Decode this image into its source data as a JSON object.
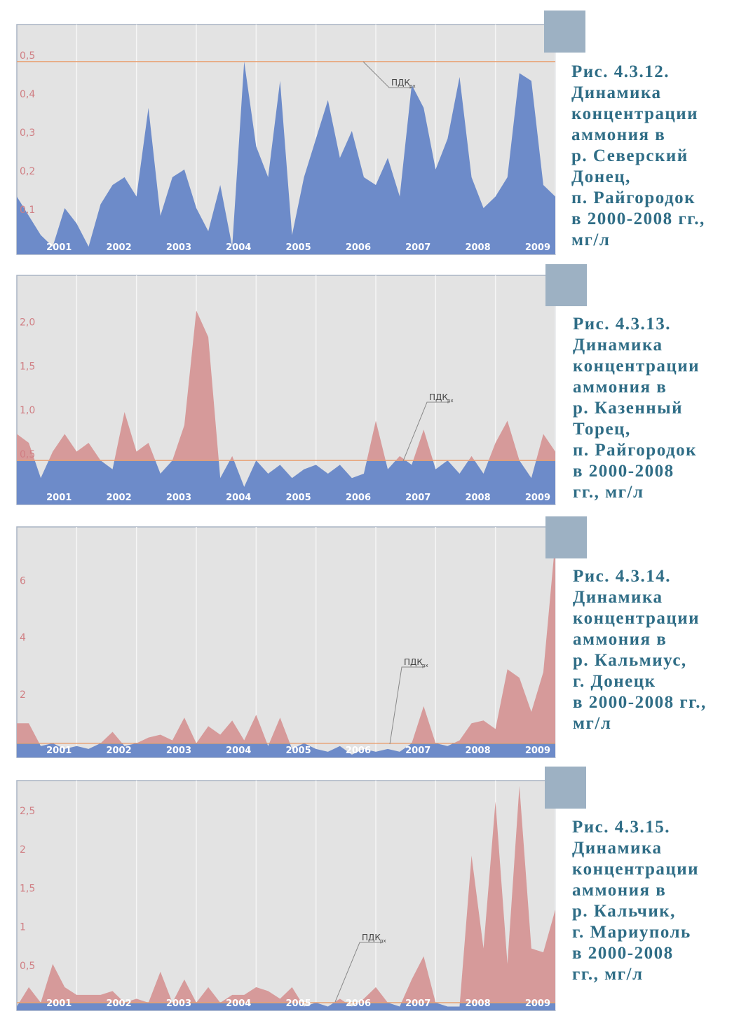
{
  "chart_data": [
    {
      "type": "area",
      "caption": [
        "Рис. 4.3.12.",
        "Динамика",
        "концентрации",
        "аммония в",
        "р. Северский",
        "Донец,",
        "п. Райгородок",
        "в 2000-2008 гг.,",
        "мг/л"
      ],
      "annotation": {
        "text": "ПДК",
        "sub": "рх"
      },
      "threshold": 0.5,
      "xlim": [
        2000,
        2009
      ],
      "xticks": [
        2001,
        2002,
        2003,
        2004,
        2005,
        2006,
        2007,
        2008,
        2009
      ],
      "ylim": [
        0,
        0.596
      ],
      "yticks": [
        {
          "value": 0.1,
          "label": "0,1"
        },
        {
          "value": 0.2,
          "label": "0,2"
        },
        {
          "value": 0.3,
          "label": "0,3"
        },
        {
          "value": 0.4,
          "label": "0,4"
        },
        {
          "value": 0.5,
          "label": "0,5"
        }
      ],
      "color_below": "#6d8bc9",
      "color_above": "#d69a9a",
      "x": [
        2000,
        2000.2,
        2000.4,
        2000.6,
        2000.8,
        2001,
        2001.2,
        2001.4,
        2001.6,
        2001.8,
        2002,
        2002.2,
        2002.4,
        2002.6,
        2002.8,
        2003,
        2003.2,
        2003.4,
        2003.6,
        2003.8,
        2004,
        2004.2,
        2004.4,
        2004.6,
        2004.8,
        2005,
        2005.2,
        2005.4,
        2005.6,
        2005.8,
        2006,
        2006.2,
        2006.4,
        2006.6,
        2006.8,
        2007,
        2007.2,
        2007.4,
        2007.6,
        2007.8,
        2008,
        2008.2,
        2008.4,
        2008.6,
        2008.8,
        2009
      ],
      "values": [
        0.15,
        0.1,
        0.05,
        0.02,
        0.12,
        0.08,
        0.02,
        0.13,
        0.18,
        0.2,
        0.15,
        0.38,
        0.1,
        0.2,
        0.22,
        0.12,
        0.06,
        0.18,
        0.02,
        0.5,
        0.28,
        0.2,
        0.45,
        0.05,
        0.2,
        0.3,
        0.4,
        0.25,
        0.32,
        0.2,
        0.18,
        0.25,
        0.15,
        0.44,
        0.38,
        0.22,
        0.3,
        0.46,
        0.2,
        0.12,
        0.15,
        0.2,
        0.47,
        0.45,
        0.18,
        0.15
      ]
    },
    {
      "type": "area",
      "caption": [
        "Рис. 4.3.13.",
        "Динамика",
        "концентрации",
        "аммония в",
        "р. Казенный",
        "Торец,",
        "п. Райгородок",
        "в 2000-2008",
        "гг., мг/л"
      ],
      "annotation": {
        "text": "ПДК",
        "sub": "рх"
      },
      "threshold": 0.5,
      "xlim": [
        2000,
        2009
      ],
      "xticks": [
        2001,
        2002,
        2003,
        2004,
        2005,
        2006,
        2007,
        2008,
        2009
      ],
      "ylim": [
        0,
        2.6
      ],
      "yticks": [
        {
          "value": 0.5,
          "label": "0,5"
        },
        {
          "value": 1,
          "label": "1,0"
        },
        {
          "value": 1.5,
          "label": "1,5"
        },
        {
          "value": 2,
          "label": "2,0"
        }
      ],
      "color_below": "#6d8bc9",
      "color_above": "#d69a9a",
      "x": [
        2000,
        2000.2,
        2000.4,
        2000.6,
        2000.8,
        2001,
        2001.2,
        2001.4,
        2001.6,
        2001.8,
        2002,
        2002.2,
        2002.4,
        2002.6,
        2002.8,
        2003,
        2003.2,
        2003.4,
        2003.6,
        2003.8,
        2004,
        2004.2,
        2004.4,
        2004.6,
        2004.8,
        2005,
        2005.2,
        2005.4,
        2005.6,
        2005.8,
        2006,
        2006.2,
        2006.4,
        2006.6,
        2006.8,
        2007,
        2007.2,
        2007.4,
        2007.6,
        2007.8,
        2008,
        2008.2,
        2008.4,
        2008.6,
        2008.8,
        2009
      ],
      "values": [
        0.8,
        0.7,
        0.3,
        0.6,
        0.8,
        0.6,
        0.7,
        0.5,
        0.4,
        1.05,
        0.6,
        0.7,
        0.35,
        0.5,
        0.9,
        2.2,
        1.9,
        0.3,
        0.55,
        0.2,
        0.5,
        0.35,
        0.45,
        0.3,
        0.4,
        0.45,
        0.35,
        0.45,
        0.3,
        0.35,
        0.95,
        0.4,
        0.55,
        0.45,
        0.85,
        0.4,
        0.5,
        0.35,
        0.55,
        0.35,
        0.7,
        0.95,
        0.5,
        0.3,
        0.8,
        0.6
      ]
    },
    {
      "type": "area",
      "caption": [
        "Рис. 4.3.14.",
        "Динамика",
        "концентрации",
        "аммония в",
        "р. Кальмиус,",
        "г. Донецк",
        "в 2000-2008 гг.,",
        "мг/л"
      ],
      "annotation": {
        "text": "ПДК",
        "sub": "рх"
      },
      "threshold": 0.5,
      "xlim": [
        2000,
        2009
      ],
      "xticks": [
        2001,
        2002,
        2003,
        2004,
        2005,
        2006,
        2007,
        2008,
        2009
      ],
      "ylim": [
        0,
        8.1
      ],
      "yticks": [
        2,
        4,
        6
      ],
      "color_below": "#6d8bc9",
      "color_above": "#d69a9a",
      "x": [
        2000,
        2000.2,
        2000.4,
        2000.6,
        2000.8,
        2001,
        2001.2,
        2001.4,
        2001.6,
        2001.8,
        2002,
        2002.2,
        2002.4,
        2002.6,
        2002.8,
        2003,
        2003.2,
        2003.4,
        2003.6,
        2003.8,
        2004,
        2004.2,
        2004.4,
        2004.6,
        2004.8,
        2005,
        2005.2,
        2005.4,
        2005.6,
        2005.8,
        2006,
        2006.2,
        2006.4,
        2006.6,
        2006.8,
        2007,
        2007.2,
        2007.4,
        2007.6,
        2007.8,
        2008,
        2008.2,
        2008.4,
        2008.6,
        2008.8,
        2009
      ],
      "values": [
        1.2,
        1.2,
        0.4,
        0.5,
        0.3,
        0.4,
        0.3,
        0.5,
        0.9,
        0.4,
        0.5,
        0.7,
        0.8,
        0.6,
        1.4,
        0.5,
        1.1,
        0.8,
        1.3,
        0.6,
        1.5,
        0.4,
        1.4,
        0.3,
        0.5,
        0.3,
        0.2,
        0.4,
        0.1,
        0.3,
        0.2,
        0.3,
        0.2,
        0.5,
        1.8,
        0.5,
        0.4,
        0.6,
        1.2,
        1.3,
        1.0,
        3.1,
        2.8,
        1.6,
        3.0,
        7.6
      ]
    },
    {
      "type": "area",
      "caption": [
        "Рис. 4.3.15.",
        "Динамика",
        "концентрации",
        "аммония в",
        "р. Кальчик,",
        "г. Мариуполь",
        "в 2000-2008",
        "гг., мг/л"
      ],
      "annotation": {
        "text": "ПДК",
        "sub": "рх"
      },
      "threshold": 0.1,
      "xlim": [
        2000,
        2009
      ],
      "xticks": [
        2001,
        2002,
        2003,
        2004,
        2005,
        2006,
        2007,
        2008,
        2009
      ],
      "ylim": [
        0,
        2.97
      ],
      "yticks": [
        {
          "value": 0.5,
          "label": "0,5"
        },
        1,
        {
          "value": 1.5,
          "label": "1,5"
        },
        2,
        {
          "value": 2.5,
          "label": "2,5"
        }
      ],
      "color_below": "#6d8bc9",
      "color_above": "#d69a9a",
      "x": [
        2000,
        2000.2,
        2000.4,
        2000.6,
        2000.8,
        2001,
        2001.2,
        2001.4,
        2001.6,
        2001.8,
        2002,
        2002.2,
        2002.4,
        2002.6,
        2002.8,
        2003,
        2003.2,
        2003.4,
        2003.6,
        2003.8,
        2004,
        2004.2,
        2004.4,
        2004.6,
        2004.8,
        2005,
        2005.2,
        2005.4,
        2005.6,
        2005.8,
        2006,
        2006.2,
        2006.4,
        2006.6,
        2006.8,
        2007,
        2007.2,
        2007.4,
        2007.6,
        2007.8,
        2008,
        2008.2,
        2008.4,
        2008.6,
        2008.8,
        2009
      ],
      "values": [
        0.05,
        0.3,
        0.1,
        0.6,
        0.3,
        0.2,
        0.2,
        0.2,
        0.25,
        0.1,
        0.15,
        0.1,
        0.5,
        0.1,
        0.4,
        0.1,
        0.3,
        0.1,
        0.2,
        0.2,
        0.3,
        0.25,
        0.15,
        0.3,
        0.05,
        0.1,
        0.05,
        0.15,
        0.05,
        0.15,
        0.3,
        0.1,
        0.05,
        0.4,
        0.7,
        0.1,
        0.05,
        0.05,
        2.0,
        0.8,
        2.7,
        0.6,
        2.9,
        0.8,
        0.75,
        1.3
      ]
    }
  ]
}
